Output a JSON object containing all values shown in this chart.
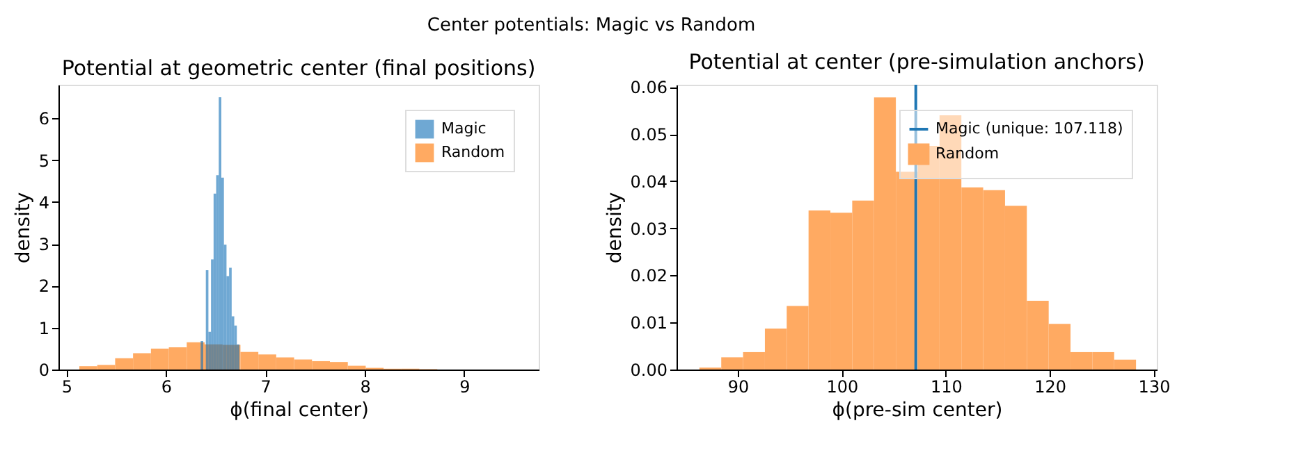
{
  "chart_data": [
    {
      "type": "histogram",
      "title": "Potential at geometric center (final positions)",
      "xlabel": "ϕ(final center)",
      "ylabel": "density",
      "annotations": [
        "Center potentials: Magic vs Random"
      ],
      "series": [
        {
          "name": "Magic",
          "color": "#6fa8d3",
          "bins": [
            6.35,
            6.376,
            6.402,
            6.428,
            6.454,
            6.48,
            6.506,
            6.532,
            6.558,
            6.584,
            6.61,
            6.636,
            6.662,
            6.688,
            6.714,
            6.74
          ],
          "values": [
            0.68,
            null,
            2.37,
            0.9,
            2.63,
            4.2,
            4.64,
            6.5,
            4.58,
            2.98,
            2.23,
            2.43,
            1.27,
            1.05,
            0.6
          ]
        },
        {
          "name": "Random",
          "color": "#ffaa62",
          "values": [
            0.08,
            0.11,
            0.27,
            0.39,
            0.5,
            0.53,
            0.65,
            0.6,
            0.59,
            0.42,
            0.36,
            0.29,
            0.24,
            0.2,
            0.18,
            0.09,
            0.04,
            0.02,
            0.02,
            0.01
          ]
        }
      ],
      "bins": [
        5.13,
        5.31,
        5.49,
        5.67,
        5.85,
        6.03,
        6.21,
        6.39,
        6.57,
        6.75,
        6.93,
        7.11,
        7.29,
        7.47,
        7.65,
        7.83,
        8.01,
        8.19,
        8.37,
        8.55,
        8.73
      ],
      "xlim": [
        4.92,
        9.75
      ],
      "xticks": [
        5,
        6,
        7,
        8,
        9
      ],
      "ylim": [
        0,
        6.8
      ],
      "yticks": [
        0,
        1,
        2,
        3,
        4,
        5,
        6
      ],
      "legend": "top right",
      "grid": false
    },
    {
      "type": "histogram",
      "title": "Potential at center (pre-simulation anchors)",
      "xlabel": "ϕ(pre-sim center)",
      "ylabel": "density",
      "series": [
        {
          "name": "Random",
          "color": "#ffaa62",
          "values": [
            0.0004,
            0.0026,
            0.0037,
            0.0087,
            0.0135,
            0.0338,
            0.0333,
            0.0359,
            0.0578,
            0.042,
            0.0475,
            0.054,
            0.0387,
            0.0381,
            0.0348,
            0.0146,
            0.0097,
            0.0037,
            0.0037,
            0.0021
          ]
        }
      ],
      "bins": [
        86.3,
        88.4,
        90.5,
        92.6,
        94.7,
        96.8,
        98.9,
        101.0,
        103.1,
        105.2,
        107.3,
        109.4,
        111.5,
        113.6,
        115.7,
        117.8,
        119.9,
        122.0,
        124.1,
        126.2,
        128.3
      ],
      "ref_lines": [
        {
          "axis": "x",
          "value": 107.118,
          "label": "Magic (unique: 107.118)",
          "color": "#1f77b4"
        }
      ],
      "xlim": [
        84.1,
        130.3
      ],
      "xticks": [
        90,
        100,
        110,
        120,
        130
      ],
      "ylim": [
        0,
        0.0605
      ],
      "yticks": [
        {
          "value": 0,
          "label": "0.00"
        },
        {
          "value": 0.01,
          "label": "0.01"
        },
        {
          "value": 0.02,
          "label": "0.02"
        },
        {
          "value": 0.03,
          "label": "0.03"
        },
        {
          "value": 0.04,
          "label": "0.04"
        },
        {
          "value": 0.05,
          "label": "0.05"
        },
        {
          "value": 0.06,
          "label": "0.06"
        }
      ],
      "legend": "top right",
      "grid": false
    }
  ]
}
